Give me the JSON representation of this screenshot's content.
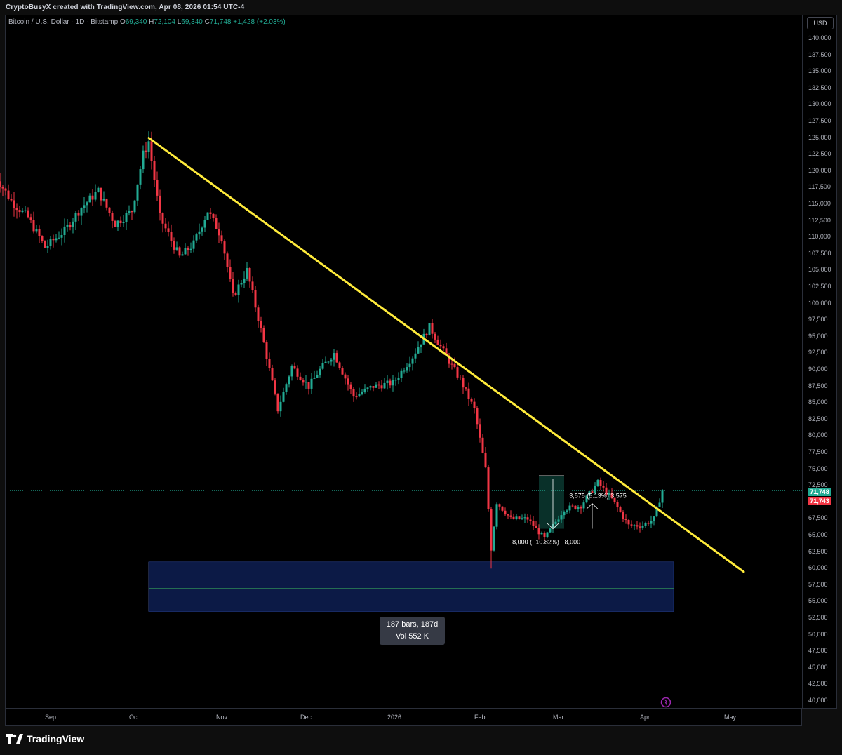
{
  "credit": "CryptoBusyX created with TradingView.com, Apr 08, 2026 01:54 UTC-4",
  "legend": {
    "symbol": "Bitcoin / U.S. Dollar · 1D · Bitstamp",
    "o_key": "O",
    "o_val": "69,340",
    "h_key": "H",
    "h_val": "72,104",
    "l_key": "L",
    "l_val": "69,340",
    "c_key": "C",
    "c_val": "71,748",
    "change": "+1,428 (+2.03%)"
  },
  "currency": "USD",
  "brand": "TradingView",
  "colors": {
    "up": "#22ab94",
    "down": "#f23645",
    "trendline": "#ffeb3b",
    "zone": "#0c1a46",
    "bg": "#000000"
  },
  "chart_data": {
    "type": "candlestick",
    "instrument": "Bitcoin / U.S. Dollar",
    "interval": "1D",
    "exchange": "Bitstamp",
    "ylim": [
      40000,
      142500
    ],
    "y_ticks": [
      "140,000",
      "137,500",
      "135,000",
      "132,500",
      "130,000",
      "127,500",
      "125,000",
      "122,500",
      "120,000",
      "117,500",
      "115,000",
      "112,500",
      "110,000",
      "107,500",
      "105,000",
      "102,500",
      "100,000",
      "97,500",
      "95,000",
      "92,500",
      "90,000",
      "87,500",
      "85,000",
      "82,500",
      "80,000",
      "77,500",
      "75,000",
      "72,500",
      "70,000",
      "67,500",
      "65,000",
      "62,500",
      "60,000",
      "57,500",
      "55,000",
      "52,500",
      "50,000",
      "47,500",
      "45,000",
      "42,500",
      "40,000"
    ],
    "x_ticks": [
      {
        "label": "Sep",
        "date": "2025-09-01"
      },
      {
        "label": "Oct",
        "date": "2025-10-01"
      },
      {
        "label": "Nov",
        "date": "2025-11-01"
      },
      {
        "label": "Dec",
        "date": "2025-12-01"
      },
      {
        "label": "2026",
        "date": "2026-01-01"
      },
      {
        "label": "Feb",
        "date": "2026-02-01"
      },
      {
        "label": "Mar",
        "date": "2026-03-01"
      },
      {
        "label": "Apr",
        "date": "2026-04-01"
      },
      {
        "label": "May",
        "date": "2026-05-01"
      }
    ],
    "close_path": [
      [
        "2025-08-12",
        119500
      ],
      [
        "2025-08-18",
        115500
      ],
      [
        "2025-08-24",
        113000
      ],
      [
        "2025-08-30",
        108500
      ],
      [
        "2025-09-06",
        111000
      ],
      [
        "2025-09-12",
        114500
      ],
      [
        "2025-09-18",
        117000
      ],
      [
        "2025-09-24",
        112000
      ],
      [
        "2025-09-30",
        114000
      ],
      [
        "2025-10-04",
        122500
      ],
      [
        "2025-10-06",
        124500
      ],
      [
        "2025-10-10",
        113000
      ],
      [
        "2025-10-17",
        107000
      ],
      [
        "2025-10-22",
        109000
      ],
      [
        "2025-10-27",
        114000
      ],
      [
        "2025-11-01",
        110000
      ],
      [
        "2025-11-05",
        101000
      ],
      [
        "2025-11-10",
        105000
      ],
      [
        "2025-11-15",
        96000
      ],
      [
        "2025-11-21",
        84000
      ],
      [
        "2025-11-26",
        90500
      ],
      [
        "2025-12-02",
        87500
      ],
      [
        "2025-12-06",
        90000
      ],
      [
        "2025-12-11",
        92500
      ],
      [
        "2025-12-18",
        86000
      ],
      [
        "2025-12-25",
        87500
      ],
      [
        "2026-01-01",
        88000
      ],
      [
        "2026-01-08",
        92000
      ],
      [
        "2026-01-14",
        96500
      ],
      [
        "2026-01-20",
        92000
      ],
      [
        "2026-01-25",
        88500
      ],
      [
        "2026-01-30",
        84000
      ],
      [
        "2026-02-03",
        75000
      ],
      [
        "2026-02-05",
        63000
      ],
      [
        "2026-02-07",
        70000
      ],
      [
        "2026-02-12",
        67500
      ],
      [
        "2026-02-18",
        67500
      ],
      [
        "2026-02-24",
        64500
      ],
      [
        "2026-03-03",
        69000
      ],
      [
        "2026-03-09",
        69500
      ],
      [
        "2026-03-15",
        73000
      ],
      [
        "2026-03-20",
        70500
      ],
      [
        "2026-03-26",
        66500
      ],
      [
        "2026-03-31",
        66500
      ],
      [
        "2026-04-04",
        67500
      ],
      [
        "2026-04-07",
        71748
      ]
    ],
    "extremes": {
      "high": {
        "date": "2025-10-06",
        "value": 126000
      },
      "low": {
        "date": "2026-02-05",
        "value": 60000
      }
    },
    "current_price": 71748,
    "price_labels": [
      "71,748",
      "71,743"
    ],
    "trendline": {
      "from": {
        "date": "2025-10-06",
        "value": 125000
      },
      "to": {
        "date": "2026-05-06",
        "value": 59500
      }
    },
    "support_zone": {
      "from": "2025-10-06",
      "to": "2026-04-11",
      "top": 61000,
      "bottom": 53500,
      "mid": 57000
    },
    "measure_tooltip": {
      "line1": "187 bars, 187d",
      "line2": "Vol 552 K"
    },
    "annotations": [
      {
        "text": "3,575 (5.13%) 3,575",
        "date": "2026-03-15",
        "value": 71000
      },
      {
        "text": "−8,000 (−10.82%) −8,000",
        "date": "2026-02-24",
        "value": 64000
      }
    ],
    "grid": false,
    "legend": "top-left"
  }
}
